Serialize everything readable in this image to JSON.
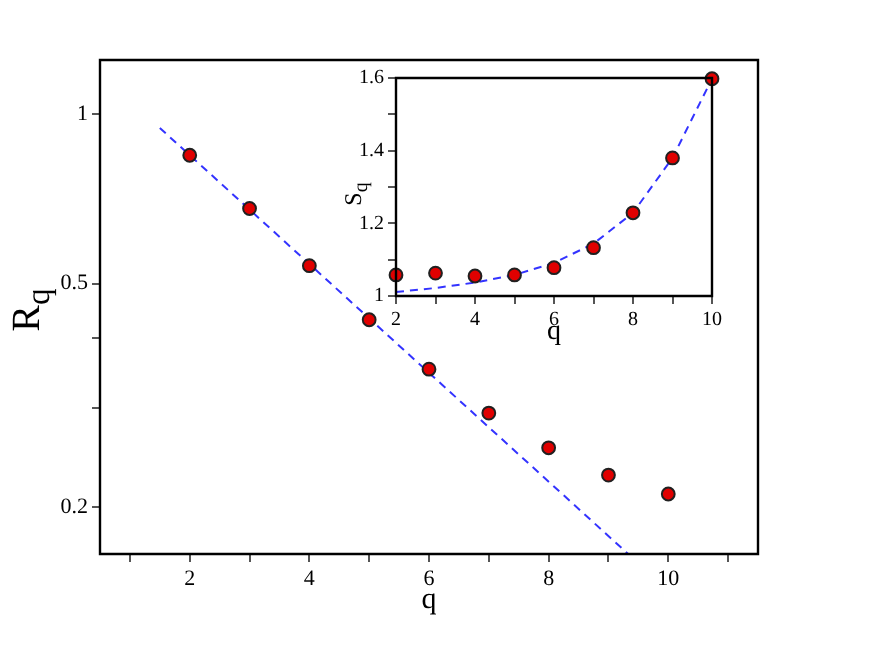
{
  "chart_data": [
    {
      "type": "scatter",
      "xlabel": "q",
      "ylabel": "R$_{q}$",
      "log": "y",
      "grid": false,
      "legend": false,
      "marker": "circle",
      "xlim": [
        0.5,
        11.5
      ],
      "ylim": [
        0.165,
        1.25
      ],
      "xticks": [
        {
          "value": 1,
          "label": null
        },
        2,
        {
          "value": 3,
          "label": null
        },
        4,
        {
          "value": 5,
          "label": null
        },
        6,
        {
          "value": 7,
          "label": null
        },
        8,
        {
          "value": 9,
          "label": null
        },
        10,
        {
          "value": 11,
          "label": null
        }
      ],
      "yticks": [
        0.2,
        {
          "value": 0.3,
          "label": null
        },
        {
          "value": 0.4,
          "label": null
        },
        0.5,
        1
      ],
      "series": [
        {
          "type": "scatter",
          "color": "#e00000",
          "x": [
            2,
            3,
            4,
            5,
            6,
            7,
            8,
            9,
            10
          ],
          "values": [
            0.846,
            0.68,
            0.538,
            0.431,
            0.352,
            0.294,
            0.255,
            0.228,
            0.211
          ]
        },
        {
          "type": "line",
          "color": "#3333ff",
          "line_style": "dashed",
          "marker": "none",
          "x": [
            1.5,
            9.33
          ],
          "values": [
            0.946,
            0.165
          ]
        }
      ]
    },
    {
      "type": "scatter",
      "xlabel": "q",
      "ylabel": "S$_{q}$",
      "grid": false,
      "legend": false,
      "marker": "circle",
      "xlim": [
        2,
        10
      ],
      "ylim": [
        1,
        1.6
      ],
      "xticks": [
        2,
        {
          "value": 3,
          "label": null
        },
        4,
        {
          "value": 5,
          "label": null
        },
        6,
        {
          "value": 7,
          "label": null
        },
        8,
        {
          "value": 9,
          "label": null
        },
        10
      ],
      "yticks": [
        1,
        {
          "value": 1.1,
          "label": null
        },
        1.2,
        {
          "value": 1.3,
          "label": null
        },
        1.4,
        {
          "value": 1.5,
          "label": null
        },
        1.6
      ],
      "series": [
        {
          "type": "scatter",
          "color": "#e00000",
          "x": [
            2,
            3,
            4,
            5,
            6,
            7,
            8,
            9,
            10
          ],
          "values": [
            1.058,
            1.063,
            1.055,
            1.058,
            1.078,
            1.133,
            1.229,
            1.38,
            1.598
          ]
        },
        {
          "type": "line",
          "color": "#3333ff",
          "line_style": "dashed",
          "marker": "none",
          "x": [
            2,
            3,
            4,
            5,
            6,
            7,
            8,
            9,
            10
          ],
          "values": [
            1.011,
            1.022,
            1.037,
            1.058,
            1.091,
            1.144,
            1.229,
            1.38,
            1.598
          ]
        }
      ]
    }
  ]
}
